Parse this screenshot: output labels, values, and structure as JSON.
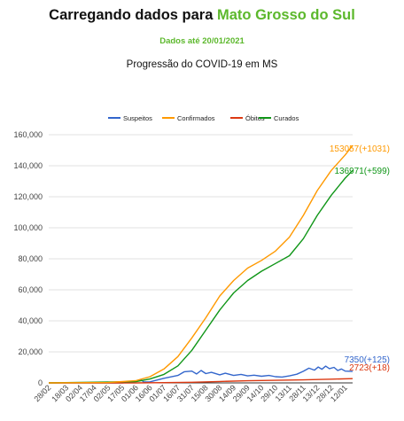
{
  "header": {
    "title_prefix": "Carregando dados para ",
    "title_place": "Mato Grosso do Sul",
    "date_line": "Dados até 20/01/2021",
    "chart_title": "Progressão do COVID-19 em MS"
  },
  "chart_data": {
    "type": "line",
    "title": "Progressão do COVID-19 em MS",
    "xlabel": "",
    "ylabel": "",
    "ylim": [
      0,
      160000
    ],
    "yticks": [
      0,
      20000,
      40000,
      60000,
      80000,
      100000,
      120000,
      140000,
      160000
    ],
    "ytick_labels": [
      "0",
      "20,000",
      "40,000",
      "60,000",
      "80,000",
      "100,000",
      "120,000",
      "140,000",
      "160,000"
    ],
    "grid": true,
    "legend_position": "top",
    "x_start": "28/02/2020",
    "x_end": "20/01/2021",
    "x_labels": [
      "28/02",
      "18/03",
      "02/04",
      "17/04",
      "02/05",
      "17/05",
      "01/06",
      "16/06",
      "01/07",
      "16/07",
      "31/07",
      "15/08",
      "30/08",
      "14/09",
      "29/09",
      "14/10",
      "29/10",
      "13/11",
      "28/11",
      "13/12",
      "28/12",
      "12/01"
    ],
    "series": [
      {
        "name": "Suspeitos",
        "color": "#3366cc",
        "end_label": "7350(+125)",
        "points": [
          [
            "28/02/2020",
            0
          ],
          [
            "17/05/2020",
            0
          ],
          [
            "01/06/2020",
            900
          ],
          [
            "06/06/2020",
            2200
          ],
          [
            "09/06/2020",
            600
          ],
          [
            "16/06/2020",
            700
          ],
          [
            "01/07/2020",
            3000
          ],
          [
            "16/07/2020",
            4800
          ],
          [
            "23/07/2020",
            7200
          ],
          [
            "31/07/2020",
            7600
          ],
          [
            "05/08/2020",
            5800
          ],
          [
            "10/08/2020",
            8000
          ],
          [
            "15/08/2020",
            6000
          ],
          [
            "21/08/2020",
            6800
          ],
          [
            "30/08/2020",
            5200
          ],
          [
            "05/09/2020",
            6200
          ],
          [
            "14/09/2020",
            4800
          ],
          [
            "22/09/2020",
            5500
          ],
          [
            "29/09/2020",
            4500
          ],
          [
            "06/10/2020",
            5000
          ],
          [
            "14/10/2020",
            4300
          ],
          [
            "22/10/2020",
            4800
          ],
          [
            "29/10/2020",
            4000
          ],
          [
            "05/11/2020",
            3800
          ],
          [
            "13/11/2020",
            4500
          ],
          [
            "21/11/2020",
            5600
          ],
          [
            "28/11/2020",
            7500
          ],
          [
            "04/12/2020",
            9500
          ],
          [
            "10/12/2020",
            8200
          ],
          [
            "14/12/2020",
            10200
          ],
          [
            "18/12/2020",
            8800
          ],
          [
            "22/12/2020",
            10800
          ],
          [
            "26/12/2020",
            9200
          ],
          [
            "31/12/2020",
            10000
          ],
          [
            "04/01/2021",
            8000
          ],
          [
            "08/01/2021",
            9000
          ],
          [
            "12/01/2021",
            7600
          ],
          [
            "20/01/2021",
            7350
          ]
        ]
      },
      {
        "name": "Confirmados",
        "color": "#ff9900",
        "end_label": "153057(+1031)",
        "points": [
          [
            "28/02/2020",
            0
          ],
          [
            "02/05/2020",
            200
          ],
          [
            "01/06/2020",
            1500
          ],
          [
            "16/06/2020",
            4000
          ],
          [
            "01/07/2020",
            9000
          ],
          [
            "16/07/2020",
            17000
          ],
          [
            "31/07/2020",
            29000
          ],
          [
            "15/08/2020",
            42000
          ],
          [
            "30/08/2020",
            56000
          ],
          [
            "14/09/2020",
            66000
          ],
          [
            "29/09/2020",
            74000
          ],
          [
            "14/10/2020",
            79000
          ],
          [
            "29/10/2020",
            85000
          ],
          [
            "13/11/2020",
            94000
          ],
          [
            "28/11/2020",
            108000
          ],
          [
            "13/12/2020",
            124000
          ],
          [
            "28/12/2020",
            137000
          ],
          [
            "12/01/2021",
            147000
          ],
          [
            "20/01/2021",
            153057
          ]
        ]
      },
      {
        "name": "Óbitos",
        "color": "#dc3912",
        "end_label": "2723(+18)",
        "points": [
          [
            "28/02/2020",
            0
          ],
          [
            "01/06/2020",
            20
          ],
          [
            "01/07/2020",
            150
          ],
          [
            "31/07/2020",
            400
          ],
          [
            "30/08/2020",
            900
          ],
          [
            "29/09/2020",
            1400
          ],
          [
            "29/10/2020",
            1650
          ],
          [
            "28/11/2020",
            1950
          ],
          [
            "28/12/2020",
            2400
          ],
          [
            "20/01/2021",
            2723
          ]
        ]
      },
      {
        "name": "Curados",
        "color": "#109618",
        "end_label": "136971(+599)",
        "points": [
          [
            "28/02/2020",
            0
          ],
          [
            "01/06/2020",
            800
          ],
          [
            "16/06/2020",
            2500
          ],
          [
            "01/07/2020",
            5500
          ],
          [
            "16/07/2020",
            11000
          ],
          [
            "31/07/2020",
            21000
          ],
          [
            "15/08/2020",
            34000
          ],
          [
            "30/08/2020",
            47000
          ],
          [
            "14/09/2020",
            58000
          ],
          [
            "29/09/2020",
            66000
          ],
          [
            "14/10/2020",
            72000
          ],
          [
            "29/10/2020",
            77000
          ],
          [
            "13/11/2020",
            82000
          ],
          [
            "28/11/2020",
            93000
          ],
          [
            "13/12/2020",
            108000
          ],
          [
            "28/12/2020",
            121000
          ],
          [
            "12/01/2021",
            132000
          ],
          [
            "20/01/2021",
            136971
          ]
        ]
      }
    ]
  }
}
